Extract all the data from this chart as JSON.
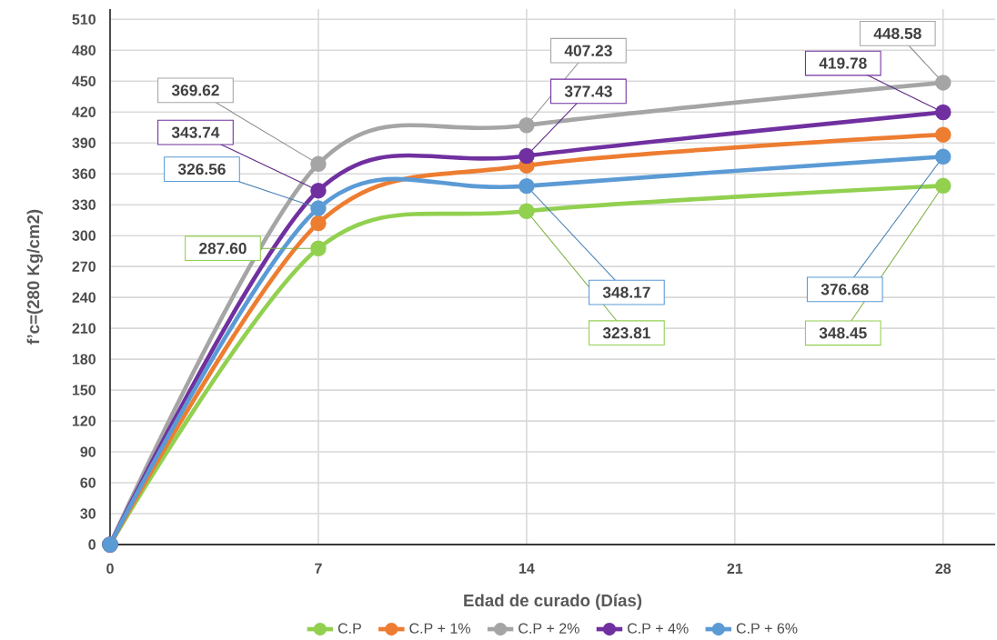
{
  "chart_data": {
    "type": "line",
    "xlabel": "Edad de curado (Días)",
    "ylabel": "f’c=(280 Kg/cm2)",
    "x": [
      0,
      7,
      14,
      28
    ],
    "series": [
      {
        "name": "C.P",
        "color": "#92d050",
        "values": [
          0,
          287.6,
          323.81,
          348.45
        ],
        "value_labels": [
          null,
          "287.60",
          "323.81",
          "348.45"
        ]
      },
      {
        "name": "C.P + 1%",
        "color": "#ed7d31",
        "values": [
          0,
          312,
          368,
          398
        ]
      },
      {
        "name": "C.P + 2%",
        "color": "#a5a5a5",
        "values": [
          0,
          369.62,
          407.23,
          448.58
        ],
        "value_labels": [
          null,
          "369.62",
          "407.23",
          "448.58"
        ]
      },
      {
        "name": "C.P + 4%",
        "color": "#7030a0",
        "values": [
          0,
          343.74,
          377.43,
          419.78
        ],
        "value_labels": [
          null,
          "343.74",
          "377.43",
          "419.78"
        ]
      },
      {
        "name": "C.P + 6%",
        "color": "#5b9bd5",
        "values": [
          0,
          326.56,
          348.17,
          376.68
        ],
        "value_labels": [
          null,
          "326.56",
          "348.17",
          "376.68"
        ]
      }
    ],
    "xlim": [
      0,
      29.75
    ],
    "ylim": [
      0,
      520
    ],
    "xticks": [
      0,
      7,
      14,
      21,
      28
    ],
    "yticks": [
      0,
      30,
      60,
      90,
      120,
      150,
      180,
      210,
      240,
      270,
      300,
      330,
      360,
      390,
      420,
      450,
      480,
      510
    ],
    "grid": true,
    "legend": "bottom",
    "marker": "circle",
    "line_style": "solid"
  }
}
